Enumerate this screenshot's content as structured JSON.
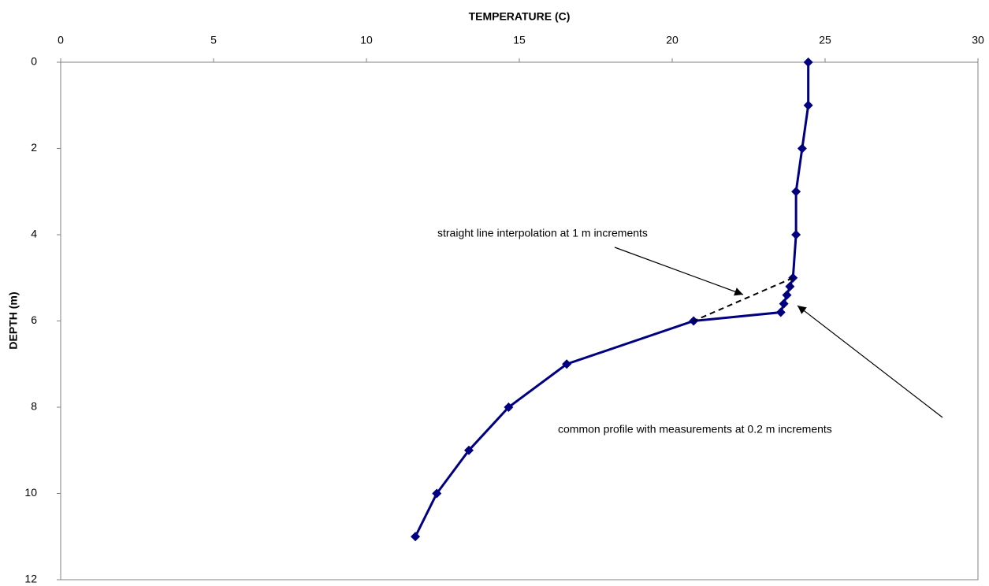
{
  "chart_data": {
    "type": "line",
    "title": "TEMPERATURE (C)",
    "y_label": "DEPTH (m)",
    "x_axis_position": "top",
    "y_inverted": true,
    "grid": false,
    "xlim": [
      0,
      30
    ],
    "xticks": [
      0,
      5,
      10,
      15,
      20,
      25,
      30
    ],
    "ylim": [
      0,
      12
    ],
    "yticks": [
      0,
      2,
      4,
      6,
      8,
      10,
      12
    ],
    "series": [
      {
        "color": "#000080",
        "marker": "diamond",
        "dashed": false,
        "x": [
          24.45,
          24.45,
          24.25,
          24.05,
          24.05,
          23.95,
          23.85,
          23.75,
          23.65,
          23.55,
          20.7,
          16.55,
          14.65,
          13.35,
          12.3,
          11.6
        ],
        "values": [
          0,
          1,
          2,
          3,
          4,
          5,
          5.2,
          5.4,
          5.6,
          5.8,
          6,
          7,
          8,
          9,
          10,
          11
        ]
      },
      {
        "color": "#000000",
        "marker": "none",
        "dashed": true,
        "x": [
          23.95,
          20.7
        ],
        "values": [
          5,
          6
        ]
      }
    ],
    "annotations": [
      {
        "text": "straight line interpolation at 1 m increments"
      },
      {
        "text": "common profile with measurements at 0.2 m increments"
      }
    ]
  }
}
